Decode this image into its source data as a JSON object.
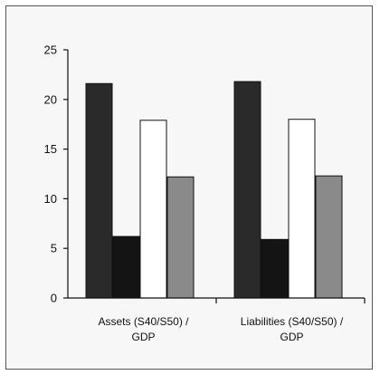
{
  "chart_data": {
    "type": "bar",
    "title": "",
    "xlabel": "",
    "ylabel": "",
    "ylim": [
      0,
      25
    ],
    "yticks": [
      0,
      5,
      10,
      15,
      20,
      25
    ],
    "grid": false,
    "legend": "none",
    "categories": [
      [
        "Assets (S40/S50) /",
        "GDP"
      ],
      [
        "Liabilities (S40/S50) /",
        "GDP"
      ]
    ],
    "series": [
      {
        "values": [
          21.6,
          21.8
        ],
        "color": "#2a2a2a"
      },
      {
        "values": [
          6.2,
          5.9
        ],
        "color": "#141414"
      },
      {
        "values": [
          17.9,
          18.0
        ],
        "color": "#ffffff"
      },
      {
        "values": [
          12.2,
          12.3
        ],
        "color": "#8a8a8a"
      }
    ]
  }
}
